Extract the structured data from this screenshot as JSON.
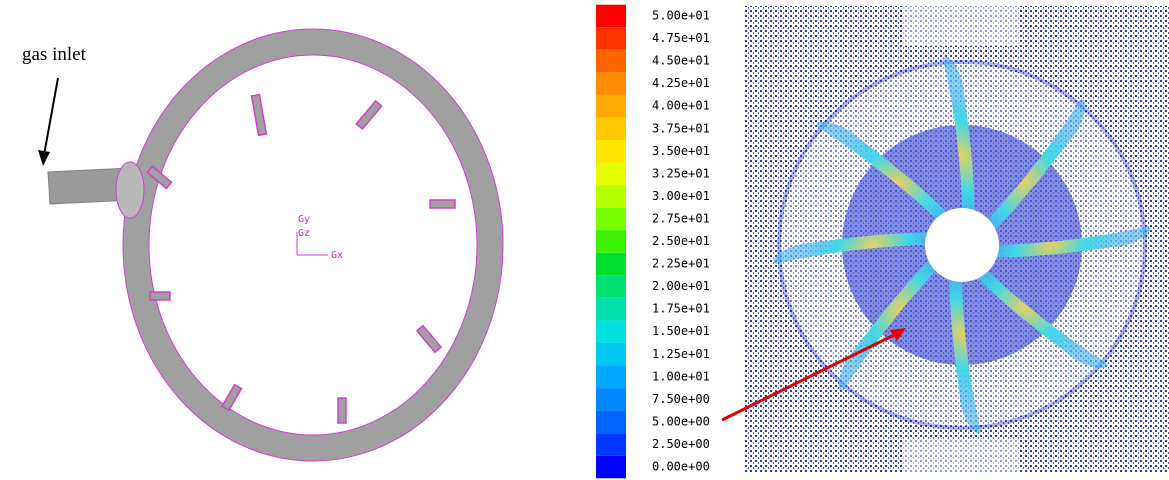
{
  "annotation": "gas inlet",
  "axis_labels": {
    "y": "Gy",
    "z": "Gz",
    "x": "Gx"
  },
  "colorbar": {
    "ticks": [
      {
        "value": 50,
        "label": "5.00e+01"
      },
      {
        "value": 47.5,
        "label": "4.75e+01"
      },
      {
        "value": 45,
        "label": "4.50e+01"
      },
      {
        "value": 42.5,
        "label": "4.25e+01"
      },
      {
        "value": 40,
        "label": "4.00e+01"
      },
      {
        "value": 37.5,
        "label": "3.75e+01"
      },
      {
        "value": 35,
        "label": "3.50e+01"
      },
      {
        "value": 32.5,
        "label": "3.25e+01"
      },
      {
        "value": 30,
        "label": "3.00e+01"
      },
      {
        "value": 27.5,
        "label": "2.75e+01"
      },
      {
        "value": 25,
        "label": "2.50e+01"
      },
      {
        "value": 22.5,
        "label": "2.25e+01"
      },
      {
        "value": 20,
        "label": "2.00e+01"
      },
      {
        "value": 17.5,
        "label": "1.75e+01"
      },
      {
        "value": 15,
        "label": "1.50e+01"
      },
      {
        "value": 12.5,
        "label": "1.25e+01"
      },
      {
        "value": 10,
        "label": "1.00e+01"
      },
      {
        "value": 7.5,
        "label": "7.50e+00"
      },
      {
        "value": 5,
        "label": "5.00e+00"
      },
      {
        "value": 2.5,
        "label": "2.50e+00"
      },
      {
        "value": 0,
        "label": "0.00e+00"
      }
    ],
    "colors": [
      "#ff0000",
      "#ff3300",
      "#ff6600",
      "#ff8c00",
      "#ffaa00",
      "#ffc800",
      "#ffe600",
      "#e6ff00",
      "#b4ff00",
      "#78ff00",
      "#3cf000",
      "#00e030",
      "#00e070",
      "#00e0a8",
      "#00e0e0",
      "#00c8f0",
      "#00a8ff",
      "#0088ff",
      "#0064ff",
      "#0038ff",
      "#0000ff"
    ]
  }
}
